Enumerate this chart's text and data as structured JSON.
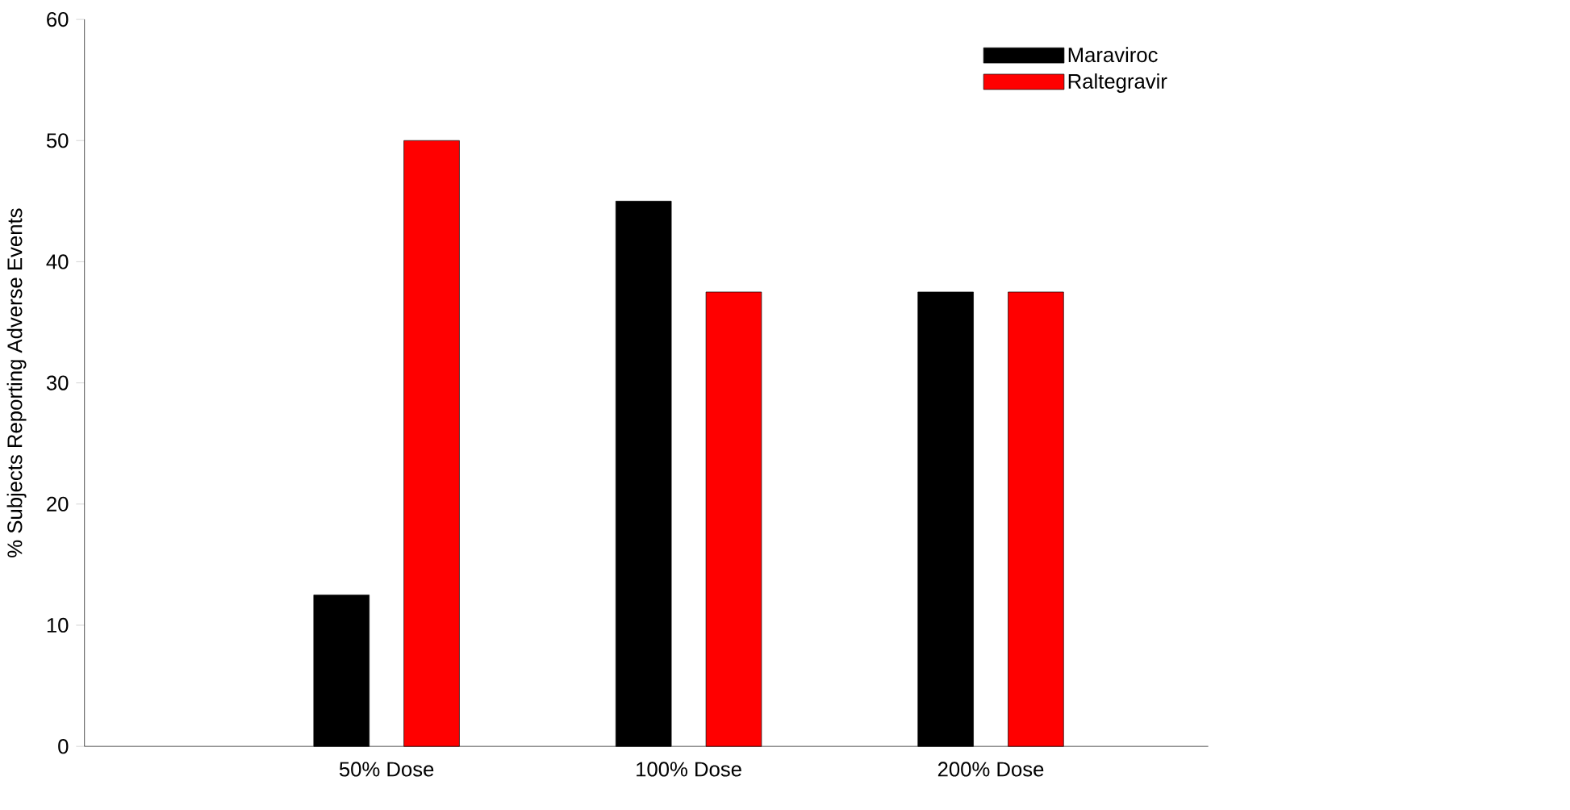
{
  "chart_data": {
    "type": "bar",
    "ylabel": "% Subjects Reporting Adverse Events",
    "categories": [
      "50% Dose",
      "100% Dose",
      "200% Dose"
    ],
    "series": [
      {
        "name": "Maraviroc",
        "color": "#000000",
        "values": [
          12.5,
          45,
          37.5
        ]
      },
      {
        "name": "Raltegravir",
        "color": "#ff0000",
        "values": [
          50,
          37.5,
          37.5
        ]
      }
    ],
    "ylim": [
      0,
      60
    ],
    "yticks": [
      0,
      10,
      20,
      30,
      40,
      50,
      60
    ],
    "legend": "top right"
  }
}
